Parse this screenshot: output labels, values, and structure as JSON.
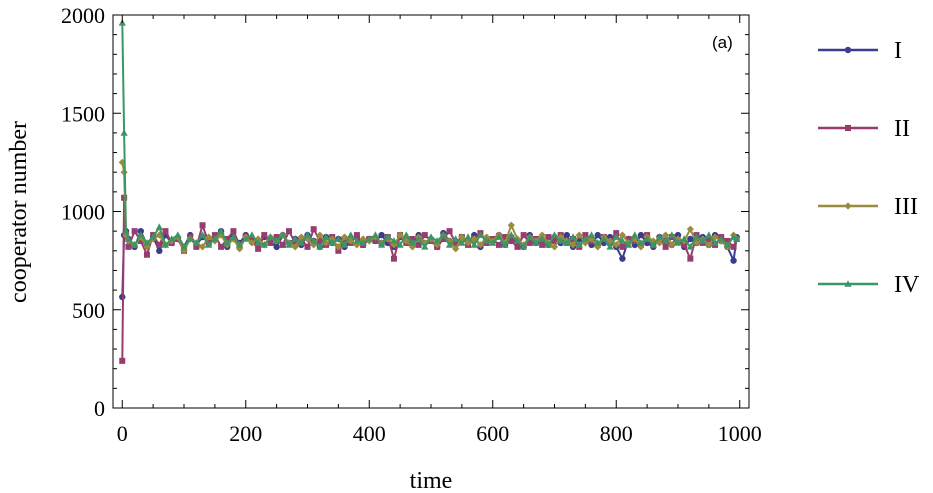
{
  "chart_data": {
    "type": "line",
    "title": "",
    "panel_label": "(a)",
    "xlabel": "time",
    "ylabel": "cooperator  number",
    "xlim": [
      -15,
      1015
    ],
    "ylim": [
      0,
      2000
    ],
    "xticks": [
      0,
      200,
      400,
      600,
      800,
      1000
    ],
    "yticks": [
      0,
      500,
      1000,
      1500,
      2000
    ],
    "grid": false,
    "legend_position": "right",
    "series": [
      {
        "name": "I",
        "color": "#3c3c8c",
        "marker": "circle",
        "x": [
          0,
          3,
          6,
          10,
          20,
          30,
          40,
          50,
          60,
          70,
          80,
          90,
          100,
          110,
          120,
          130,
          140,
          150,
          160,
          170,
          180,
          190,
          200,
          210,
          220,
          230,
          240,
          250,
          260,
          270,
          280,
          290,
          300,
          310,
          320,
          330,
          340,
          350,
          360,
          370,
          380,
          390,
          400,
          410,
          420,
          430,
          440,
          450,
          460,
          470,
          480,
          490,
          500,
          510,
          520,
          530,
          540,
          550,
          560,
          570,
          580,
          590,
          600,
          610,
          620,
          630,
          640,
          650,
          660,
          670,
          680,
          690,
          700,
          710,
          720,
          730,
          740,
          750,
          760,
          770,
          780,
          790,
          800,
          810,
          820,
          830,
          840,
          850,
          860,
          870,
          880,
          890,
          900,
          910,
          920,
          930,
          940,
          950,
          960,
          970,
          980,
          990,
          995
        ],
        "y": [
          565,
          880,
          900,
          860,
          820,
          900,
          830,
          870,
          800,
          880,
          840,
          860,
          820,
          880,
          830,
          870,
          840,
          860,
          900,
          820,
          870,
          840,
          880,
          860,
          830,
          870,
          850,
          820,
          880,
          840,
          860,
          830,
          880,
          850,
          820,
          870,
          840,
          860,
          820,
          850,
          870,
          830,
          860,
          850,
          880,
          840,
          820,
          870,
          850,
          830,
          880,
          840,
          860,
          820,
          890,
          850,
          830,
          870,
          840,
          880,
          820,
          860,
          850,
          880,
          830,
          870,
          850,
          820,
          880,
          840,
          860,
          830,
          870,
          840,
          880,
          820,
          860,
          850,
          830,
          880,
          840,
          870,
          820,
          760,
          860,
          830,
          880,
          840,
          820,
          870,
          850,
          830,
          880,
          820,
          860,
          840,
          870,
          830,
          880,
          850,
          820,
          750,
          870
        ]
      },
      {
        "name": "II",
        "color": "#963c6e",
        "marker": "square",
        "x": [
          0,
          3,
          6,
          10,
          20,
          30,
          40,
          50,
          60,
          70,
          80,
          90,
          100,
          110,
          120,
          130,
          140,
          150,
          160,
          170,
          180,
          190,
          200,
          210,
          220,
          230,
          240,
          250,
          260,
          270,
          280,
          290,
          300,
          310,
          320,
          330,
          340,
          350,
          360,
          370,
          380,
          390,
          400,
          410,
          420,
          430,
          440,
          450,
          460,
          470,
          480,
          490,
          500,
          510,
          520,
          530,
          540,
          550,
          560,
          570,
          580,
          590,
          600,
          610,
          620,
          630,
          640,
          650,
          660,
          670,
          680,
          690,
          700,
          710,
          720,
          730,
          740,
          750,
          760,
          770,
          780,
          790,
          800,
          810,
          820,
          830,
          840,
          850,
          860,
          870,
          880,
          890,
          900,
          910,
          920,
          930,
          940,
          950,
          960,
          970,
          980,
          990,
          995
        ],
        "y": [
          240,
          1070,
          880,
          820,
          900,
          850,
          780,
          880,
          830,
          900,
          840,
          860,
          800,
          870,
          820,
          930,
          840,
          880,
          820,
          860,
          900,
          830,
          870,
          850,
          810,
          880,
          840,
          870,
          830,
          900,
          840,
          860,
          820,
          910,
          850,
          830,
          870,
          800,
          860,
          840,
          880,
          830,
          860,
          850,
          840,
          870,
          760,
          880,
          840,
          860,
          830,
          880,
          850,
          820,
          860,
          900,
          840,
          870,
          830,
          860,
          890,
          840,
          860,
          830,
          870,
          850,
          820,
          880,
          840,
          860,
          830,
          870,
          850,
          880,
          840,
          860,
          820,
          880,
          850,
          830,
          870,
          840,
          890,
          820,
          860,
          850,
          830,
          880,
          840,
          860,
          820,
          870,
          850,
          830,
          760,
          880,
          840,
          860,
          830,
          870,
          850,
          820,
          860
        ]
      },
      {
        "name": "III",
        "color": "#9a8c3c",
        "marker": "diamond",
        "x": [
          0,
          3,
          6,
          10,
          20,
          30,
          40,
          50,
          60,
          70,
          80,
          90,
          100,
          110,
          120,
          130,
          140,
          150,
          160,
          170,
          180,
          190,
          200,
          210,
          220,
          230,
          240,
          250,
          260,
          270,
          280,
          290,
          300,
          310,
          320,
          330,
          340,
          350,
          360,
          370,
          380,
          390,
          400,
          410,
          420,
          430,
          440,
          450,
          460,
          470,
          480,
          490,
          500,
          510,
          520,
          530,
          540,
          550,
          560,
          570,
          580,
          590,
          600,
          610,
          620,
          630,
          640,
          650,
          660,
          670,
          680,
          690,
          700,
          710,
          720,
          730,
          740,
          750,
          760,
          770,
          780,
          790,
          800,
          810,
          820,
          830,
          840,
          850,
          860,
          870,
          880,
          890,
          900,
          910,
          920,
          930,
          940,
          950,
          960,
          970,
          980,
          990,
          995
        ],
        "y": [
          1250,
          1200,
          880,
          850,
          830,
          870,
          820,
          860,
          880,
          830,
          850,
          870,
          800,
          860,
          840,
          820,
          870,
          850,
          880,
          830,
          860,
          810,
          870,
          840,
          860,
          830,
          870,
          850,
          880,
          840,
          820,
          870,
          860,
          830,
          880,
          840,
          860,
          820,
          870,
          850,
          830,
          860,
          850,
          870,
          840,
          860,
          830,
          880,
          850,
          820,
          870,
          840,
          860,
          830,
          880,
          850,
          810,
          870,
          840,
          860,
          830,
          870,
          850,
          880,
          840,
          930,
          860,
          830,
          870,
          850,
          880,
          840,
          820,
          870,
          850,
          830,
          880,
          840,
          860,
          820,
          870,
          850,
          830,
          880,
          840,
          860,
          820,
          870,
          850,
          840,
          880,
          830,
          860,
          850,
          910,
          840,
          860,
          830,
          870,
          850,
          820,
          880,
          860
        ]
      },
      {
        "name": "IV",
        "color": "#3c9664",
        "marker": "triangle",
        "x": [
          0,
          3,
          6,
          10,
          20,
          30,
          40,
          50,
          60,
          70,
          80,
          90,
          100,
          110,
          120,
          130,
          140,
          150,
          160,
          170,
          180,
          190,
          200,
          210,
          220,
          230,
          240,
          250,
          260,
          270,
          280,
          290,
          300,
          310,
          320,
          330,
          340,
          350,
          360,
          370,
          380,
          390,
          400,
          410,
          420,
          430,
          440,
          450,
          460,
          470,
          480,
          490,
          500,
          510,
          520,
          530,
          540,
          550,
          560,
          570,
          580,
          590,
          600,
          610,
          620,
          630,
          640,
          650,
          660,
          670,
          680,
          690,
          700,
          710,
          720,
          730,
          740,
          750,
          760,
          770,
          780,
          790,
          800,
          810,
          820,
          830,
          840,
          850,
          860,
          870,
          880,
          890,
          900,
          910,
          920,
          930,
          940,
          950,
          960,
          970,
          980,
          990,
          995
        ],
        "y": [
          1960,
          1400,
          900,
          860,
          830,
          880,
          840,
          870,
          920,
          830,
          860,
          880,
          820,
          860,
          840,
          880,
          830,
          860,
          900,
          840,
          870,
          830,
          860,
          880,
          840,
          830,
          870,
          850,
          880,
          830,
          860,
          840,
          880,
          850,
          820,
          870,
          840,
          860,
          830,
          880,
          850,
          840,
          860,
          880,
          830,
          870,
          850,
          830,
          880,
          840,
          860,
          820,
          870,
          850,
          880,
          830,
          860,
          840,
          870,
          830,
          880,
          850,
          840,
          870,
          830,
          880,
          850,
          820,
          870,
          840,
          860,
          830,
          880,
          850,
          840,
          870,
          830,
          860,
          880,
          840,
          860,
          820,
          870,
          850,
          830,
          880,
          840,
          860,
          830,
          870,
          850,
          880,
          840,
          860,
          820,
          870,
          850,
          880,
          840,
          860,
          830,
          870,
          860
        ]
      }
    ]
  }
}
